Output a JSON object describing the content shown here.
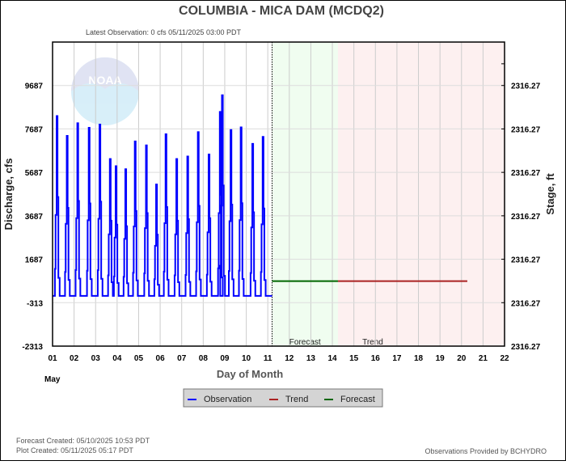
{
  "chart_data": {
    "type": "line",
    "title": "COLUMBIA - MICA DAM  (MCDQ2)",
    "subtitle": "Latest Observation: 0 cfs 05/11/2025 03:00 PDT",
    "xlabel": "Day of Month",
    "xlabel_month": "May",
    "ylabel": "Discharge, cfs",
    "ylabel_right": "Stage, ft",
    "xlim": [
      1,
      22
    ],
    "ylim": [
      -2313,
      11687
    ],
    "x_ticks": [
      "01",
      "02",
      "03",
      "04",
      "05",
      "06",
      "07",
      "08",
      "09",
      "10",
      "11",
      "12",
      "13",
      "14",
      "15",
      "16",
      "17",
      "18",
      "19",
      "20",
      "21",
      "22"
    ],
    "y_ticks": [
      -2313,
      -313,
      1687,
      3687,
      5687,
      7687,
      9687
    ],
    "y_tick_labels": [
      "-2313",
      "-313",
      "1687",
      "3687",
      "5687",
      "7687",
      "9687"
    ],
    "y_right_tick_labels": [
      "2316.27",
      "2316.27",
      "2316.27",
      "2316.27",
      "2316.27",
      "2316.27",
      "2316.27"
    ],
    "grid": true,
    "regions": [
      {
        "label": "Forecast",
        "from": 11.2,
        "to": 14.26,
        "color": "#f0fdf0"
      },
      {
        "label": "Trend",
        "from": 14.26,
        "to": 22,
        "color": "#fdf0f0"
      }
    ],
    "current_time_marker": 11.2,
    "series": [
      {
        "name": "Observation",
        "color": "#0000ff",
        "baseline": 0,
        "x_range": [
          1.0,
          11.2
        ],
        "peaks": [
          [
            1.23,
            8280
          ],
          [
            1.7,
            7370
          ],
          [
            2.19,
            7950
          ],
          [
            2.72,
            7740
          ],
          [
            3.22,
            7890
          ],
          [
            3.7,
            6300
          ],
          [
            3.97,
            5970
          ],
          [
            4.42,
            5830
          ],
          [
            4.86,
            7110
          ],
          [
            5.38,
            6930
          ],
          [
            5.85,
            5130
          ],
          [
            6.29,
            7440
          ],
          [
            6.79,
            6300
          ],
          [
            7.3,
            6420
          ],
          [
            7.79,
            7540
          ],
          [
            8.29,
            6510
          ],
          [
            8.81,
            8470
          ],
          [
            8.91,
            9240
          ],
          [
            9.31,
            7640
          ],
          [
            9.78,
            7760
          ],
          [
            10.32,
            7000
          ],
          [
            10.8,
            7320
          ]
        ]
      },
      {
        "name": "Forecast",
        "color": "#006600",
        "points": [
          [
            11.2,
            680
          ],
          [
            14.26,
            680
          ]
        ]
      },
      {
        "name": "Trend",
        "color": "#aa2222",
        "points": [
          [
            14.26,
            680
          ],
          [
            20.27,
            680
          ]
        ]
      }
    ],
    "legend": {
      "placement": "bottom",
      "items": [
        "Observation",
        "Trend",
        "Forecast"
      ]
    }
  },
  "footer": {
    "forecast_created": "Forecast Created: 05/10/2025 10:53 PDT",
    "plot_created": "Plot Created: 05/11/2025 05:17 PDT",
    "provider": "Observations Provided by BCHYDRO"
  },
  "logo_text": "NOAA"
}
